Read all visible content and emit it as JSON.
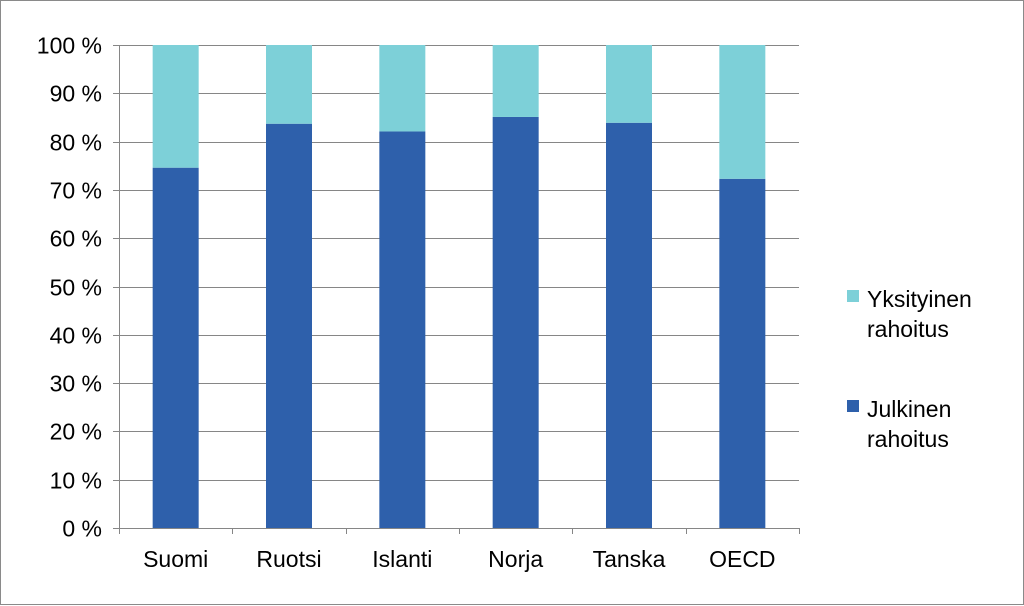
{
  "chart_data": {
    "type": "bar",
    "stacked": true,
    "categories": [
      "Suomi",
      "Ruotsi",
      "Islanti",
      "Norja",
      "Tanska",
      "OECD"
    ],
    "series": [
      {
        "name": "Julkinen rahoitus",
        "legend_lines": [
          "Julkinen",
          "rahoitus"
        ],
        "values": [
          74.6,
          83.7,
          82.1,
          85.1,
          83.9,
          72.3
        ],
        "color": "#2E60AB"
      },
      {
        "name": "Yksityinen rahoitus",
        "legend_lines": [
          "Yksityinen",
          "rahoitus"
        ],
        "values": [
          25.4,
          16.3,
          17.9,
          14.9,
          16.1,
          27.7
        ],
        "color": "#7DD0D8"
      }
    ],
    "y_ticks": [
      "0 %",
      "10 %",
      "20 %",
      "30 %",
      "40 %",
      "50 %",
      "60 %",
      "70 %",
      "80 %",
      "90 %",
      "100 %"
    ],
    "ylim": [
      0,
      100
    ],
    "grid": true,
    "legend_position": "right",
    "gridline_color": "#868686"
  }
}
